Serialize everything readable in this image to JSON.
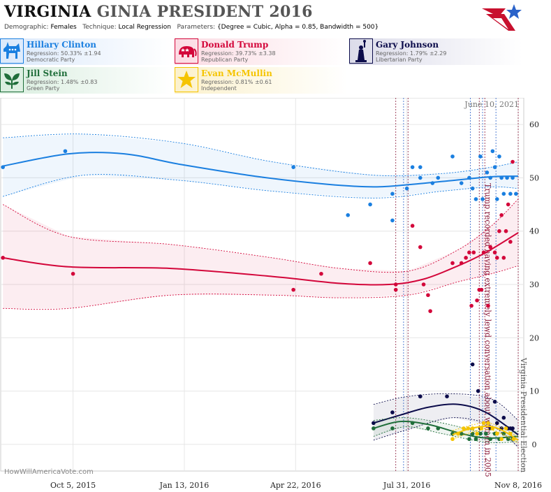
{
  "header": {
    "state": "VIRGINIA",
    "title_rest": "GINIA PRESIDENT 2016",
    "demographic_label": "Demographic:",
    "demographic": "Females",
    "technique_label": "Technique:",
    "technique": "Local Regression",
    "parameters_label": "Parameters:",
    "parameters": "{Degree = Cubic, Alpha = 0.85, Bandwidth = 500}"
  },
  "candidates": [
    {
      "name": "Hillary Clinton",
      "regression": "Regression: 50.33% ±1.94",
      "party": "Democratic Party",
      "color": "#1a7fe0",
      "icon": "donkey-icon"
    },
    {
      "name": "Donald Trump",
      "regression": "Regression: 39.73% ±3.38",
      "party": "Republican Party",
      "color": "#d3063a",
      "icon": "elephant-icon"
    },
    {
      "name": "Gary Johnson",
      "regression": "Regression: 1.79% ±2.29",
      "party": "Libertarian Party",
      "color": "#0b0b4a",
      "icon": "liberty-statue-icon"
    },
    {
      "name": "Jill Stein",
      "regression": "Regression: 1.48% ±0.83",
      "party": "Green Party",
      "color": "#1f6e3a",
      "icon": "leaf-icon"
    },
    {
      "name": "Evan McMullin",
      "regression": "Regression: 0.81% ±0.61",
      "party": "Independent",
      "color": "#f5c400",
      "icon": "star-icon"
    }
  ],
  "chart_data": {
    "type": "scatter",
    "date_stamp": "June 10, 2021",
    "watermark": "HowWillAmericaVote.com",
    "x_tick_labels": [
      "Oct 5, 2015",
      "Jan 13, 2016",
      "Apr 22, 2016",
      "Jul 31, 2016",
      "Nov 8, 2016"
    ],
    "x_ticks": [
      "2015-10-05",
      "2016-01-13",
      "2016-04-22",
      "2016-07-31",
      "2016-11-08"
    ],
    "xlim": [
      "2015-08-01",
      "2016-11-13"
    ],
    "y_ticks": [
      0,
      10,
      20,
      30,
      40,
      50,
      60
    ],
    "ylim": [
      -5,
      65
    ],
    "grid": true,
    "annotations": [
      {
        "date": "2016-10-07",
        "text": "Trump recorded having extremely lewd conversation about women in 2005",
        "color": "#8a1a3a"
      },
      {
        "date": "2016-11-08",
        "text": "Virginia Presidential Election",
        "color": "#555555"
      }
    ],
    "event_lines": [
      "2016-07-21",
      "2016-07-28",
      "2016-08-01",
      "2016-09-26",
      "2016-10-04",
      "2016-10-07",
      "2016-10-09",
      "2016-10-19",
      "2016-11-08"
    ],
    "series": [
      {
        "name": "Hillary Clinton",
        "color": "#1a7fe0",
        "points": [
          [
            "2015-08-03",
            52
          ],
          [
            "2015-09-28",
            55
          ],
          [
            "2016-04-20",
            52
          ],
          [
            "2016-06-08",
            43
          ],
          [
            "2016-06-28",
            45
          ],
          [
            "2016-07-18",
            47
          ],
          [
            "2016-07-18",
            42
          ],
          [
            "2016-07-31",
            48
          ],
          [
            "2016-08-05",
            52
          ],
          [
            "2016-08-12",
            52
          ],
          [
            "2016-08-12",
            50
          ],
          [
            "2016-08-23",
            49
          ],
          [
            "2016-08-28",
            50
          ],
          [
            "2016-09-10",
            54
          ],
          [
            "2016-09-18",
            49
          ],
          [
            "2016-09-25",
            50
          ],
          [
            "2016-09-28",
            48
          ],
          [
            "2016-10-01",
            46
          ],
          [
            "2016-10-05",
            54
          ],
          [
            "2016-10-07",
            46
          ],
          [
            "2016-10-11",
            51
          ],
          [
            "2016-10-14",
            50
          ],
          [
            "2016-10-16",
            55
          ],
          [
            "2016-10-18",
            52
          ],
          [
            "2016-10-20",
            46
          ],
          [
            "2016-10-22",
            54
          ],
          [
            "2016-10-24",
            50
          ],
          [
            "2016-10-26",
            47
          ],
          [
            "2016-10-29",
            50
          ],
          [
            "2016-11-01",
            47
          ],
          [
            "2016-11-03",
            50
          ],
          [
            "2016-11-06",
            47
          ]
        ],
        "trend": [
          [
            "2015-08-03",
            52.2
          ],
          [
            "2015-10-01",
            54.5
          ],
          [
            "2015-11-20",
            54.5
          ],
          [
            "2016-01-10",
            52.5
          ],
          [
            "2016-03-20",
            50.2
          ],
          [
            "2016-05-20",
            48.8
          ],
          [
            "2016-07-01",
            48.3
          ],
          [
            "2016-08-01",
            48.7
          ],
          [
            "2016-09-10",
            49.5
          ],
          [
            "2016-10-15",
            50.2
          ],
          [
            "2016-11-08",
            50.3
          ]
        ],
        "band_upper": [
          [
            "2015-08-03",
            57.5
          ],
          [
            "2015-10-15",
            58.2
          ],
          [
            "2016-01-10",
            56.5
          ],
          [
            "2016-04-01",
            53
          ],
          [
            "2016-07-01",
            50.5
          ],
          [
            "2016-09-01",
            50.8
          ],
          [
            "2016-10-15",
            52
          ],
          [
            "2016-11-08",
            53
          ]
        ],
        "band_lower": [
          [
            "2015-08-03",
            46.5
          ],
          [
            "2015-10-15",
            50.5
          ],
          [
            "2016-01-10",
            49.5
          ],
          [
            "2016-04-01",
            47.5
          ],
          [
            "2016-07-01",
            46.2
          ],
          [
            "2016-09-01",
            47.5
          ],
          [
            "2016-10-15",
            48.3
          ],
          [
            "2016-11-08",
            48
          ]
        ]
      },
      {
        "name": "Donald Trump",
        "color": "#d3063a",
        "points": [
          [
            "2015-08-03",
            35
          ],
          [
            "2015-10-05",
            32
          ],
          [
            "2016-04-20",
            29
          ],
          [
            "2016-05-15",
            32
          ],
          [
            "2016-06-28",
            34
          ],
          [
            "2016-07-21",
            30
          ],
          [
            "2016-07-21",
            29
          ],
          [
            "2016-08-05",
            41
          ],
          [
            "2016-08-12",
            37
          ],
          [
            "2016-08-15",
            30
          ],
          [
            "2016-08-19",
            28
          ],
          [
            "2016-08-21",
            25
          ],
          [
            "2016-09-10",
            34
          ],
          [
            "2016-09-18",
            34
          ],
          [
            "2016-09-22",
            35
          ],
          [
            "2016-09-25",
            36
          ],
          [
            "2016-09-27",
            26
          ],
          [
            "2016-09-29",
            36
          ],
          [
            "2016-10-02",
            27
          ],
          [
            "2016-10-04",
            29
          ],
          [
            "2016-10-06",
            29
          ],
          [
            "2016-10-08",
            36
          ],
          [
            "2016-10-12",
            26
          ],
          [
            "2016-10-14",
            37
          ],
          [
            "2016-10-18",
            36
          ],
          [
            "2016-10-20",
            35
          ],
          [
            "2016-10-22",
            40
          ],
          [
            "2016-10-24",
            43
          ],
          [
            "2016-10-26",
            35
          ],
          [
            "2016-10-28",
            40
          ],
          [
            "2016-10-30",
            45
          ],
          [
            "2016-11-01",
            38
          ],
          [
            "2016-11-03",
            53
          ]
        ],
        "trend": [
          [
            "2015-08-03",
            35
          ],
          [
            "2015-10-01",
            33.3
          ],
          [
            "2016-01-01",
            33
          ],
          [
            "2016-04-01",
            31.5
          ],
          [
            "2016-06-01",
            30.2
          ],
          [
            "2016-07-15",
            30
          ],
          [
            "2016-08-15",
            31
          ],
          [
            "2016-09-15",
            33.5
          ],
          [
            "2016-10-10",
            36
          ],
          [
            "2016-11-08",
            39.7
          ]
        ],
        "band_upper": [
          [
            "2015-08-03",
            45
          ],
          [
            "2015-10-01",
            39
          ],
          [
            "2016-01-01",
            37.5
          ],
          [
            "2016-04-01",
            35
          ],
          [
            "2016-06-01",
            33
          ],
          [
            "2016-08-01",
            32.5
          ],
          [
            "2016-09-15",
            36.5
          ],
          [
            "2016-10-15",
            41
          ],
          [
            "2016-11-08",
            46
          ]
        ],
        "band_lower": [
          [
            "2015-08-03",
            25.5
          ],
          [
            "2015-10-01",
            25.5
          ],
          [
            "2016-01-01",
            28
          ],
          [
            "2016-04-01",
            28
          ],
          [
            "2016-06-01",
            27.5
          ],
          [
            "2016-08-01",
            28
          ],
          [
            "2016-09-15",
            30.5
          ],
          [
            "2016-10-15",
            32
          ],
          [
            "2016-11-08",
            33.5
          ]
        ]
      },
      {
        "name": "Gary Johnson",
        "color": "#0b0b4a",
        "points": [
          [
            "2016-07-01",
            4
          ],
          [
            "2016-07-18",
            6
          ],
          [
            "2016-08-12",
            9
          ],
          [
            "2016-08-12",
            9
          ],
          [
            "2016-09-05",
            9
          ],
          [
            "2016-09-28",
            15
          ],
          [
            "2016-10-03",
            10
          ],
          [
            "2016-10-05",
            3
          ],
          [
            "2016-10-08",
            4
          ],
          [
            "2016-10-12",
            4
          ],
          [
            "2016-10-14",
            3
          ],
          [
            "2016-10-18",
            8
          ],
          [
            "2016-10-20",
            4
          ],
          [
            "2016-10-24",
            3
          ],
          [
            "2016-10-26",
            5
          ],
          [
            "2016-10-30",
            3
          ],
          [
            "2016-11-01",
            3
          ],
          [
            "2016-11-03",
            3
          ]
        ],
        "trend": [
          [
            "2016-07-01",
            4
          ],
          [
            "2016-07-25",
            5.5
          ],
          [
            "2016-08-20",
            7
          ],
          [
            "2016-09-15",
            7.5
          ],
          [
            "2016-10-10",
            6
          ],
          [
            "2016-11-08",
            1.8
          ]
        ],
        "band_upper": [
          [
            "2016-07-01",
            7.5
          ],
          [
            "2016-08-01",
            9
          ],
          [
            "2016-09-10",
            9.5
          ],
          [
            "2016-10-15",
            8.5
          ],
          [
            "2016-11-08",
            4.5
          ]
        ],
        "band_lower": [
          [
            "2016-07-01",
            0.8
          ],
          [
            "2016-08-01",
            2.8
          ],
          [
            "2016-09-10",
            5
          ],
          [
            "2016-10-15",
            3.5
          ],
          [
            "2016-11-08",
            -0.5
          ]
        ]
      },
      {
        "name": "Jill Stein",
        "color": "#1f6e3a",
        "points": [
          [
            "2016-07-01",
            3
          ],
          [
            "2016-07-18",
            3
          ],
          [
            "2016-08-05",
            4
          ],
          [
            "2016-08-19",
            3
          ],
          [
            "2016-08-28",
            3
          ],
          [
            "2016-09-10",
            2
          ],
          [
            "2016-09-18",
            2
          ],
          [
            "2016-09-25",
            1
          ],
          [
            "2016-09-28",
            2
          ],
          [
            "2016-10-01",
            1
          ],
          [
            "2016-10-05",
            2
          ],
          [
            "2016-10-10",
            2
          ],
          [
            "2016-10-14",
            1
          ],
          [
            "2016-10-18",
            2
          ],
          [
            "2016-10-22",
            1
          ],
          [
            "2016-10-26",
            2
          ],
          [
            "2016-10-30",
            1
          ],
          [
            "2016-11-03",
            1
          ]
        ],
        "trend": [
          [
            "2016-07-01",
            3
          ],
          [
            "2016-07-25",
            4.3
          ],
          [
            "2016-08-20",
            3.7
          ],
          [
            "2016-09-15",
            2.2
          ],
          [
            "2016-10-10",
            1.2
          ],
          [
            "2016-11-08",
            1.5
          ]
        ],
        "band_upper": [
          [
            "2016-07-01",
            4.5
          ],
          [
            "2016-07-30",
            5
          ],
          [
            "2016-09-01",
            4
          ],
          [
            "2016-10-10",
            2.2
          ],
          [
            "2016-11-08",
            2.4
          ]
        ],
        "band_lower": [
          [
            "2016-07-01",
            1.5
          ],
          [
            "2016-07-30",
            3.3
          ],
          [
            "2016-09-01",
            2
          ],
          [
            "2016-10-10",
            0.4
          ],
          [
            "2016-11-08",
            0.5
          ]
        ]
      },
      {
        "name": "Evan McMullin",
        "color": "#f5c400",
        "points": [
          [
            "2016-09-10",
            1
          ],
          [
            "2016-09-15",
            2
          ],
          [
            "2016-09-20",
            3
          ],
          [
            "2016-09-24",
            3
          ],
          [
            "2016-09-28",
            3
          ],
          [
            "2016-10-02",
            2
          ],
          [
            "2016-10-06",
            3
          ],
          [
            "2016-10-08",
            4
          ],
          [
            "2016-10-12",
            4
          ],
          [
            "2016-10-16",
            3
          ],
          [
            "2016-10-20",
            2
          ],
          [
            "2016-10-24",
            1
          ],
          [
            "2016-10-28",
            3
          ],
          [
            "2016-11-01",
            2
          ],
          [
            "2016-11-04",
            1
          ]
        ],
        "trend": [
          [
            "2016-09-10",
            1.8
          ],
          [
            "2016-09-25",
            2.9
          ],
          [
            "2016-10-12",
            3.4
          ],
          [
            "2016-10-25",
            2.6
          ],
          [
            "2016-11-08",
            0.8
          ]
        ],
        "band_upper": [
          [
            "2016-09-10",
            2.6
          ],
          [
            "2016-10-12",
            4
          ],
          [
            "2016-11-08",
            1.4
          ]
        ],
        "band_lower": [
          [
            "2016-09-10",
            1
          ],
          [
            "2016-10-12",
            2.8
          ],
          [
            "2016-11-08",
            0.2
          ]
        ]
      }
    ]
  }
}
